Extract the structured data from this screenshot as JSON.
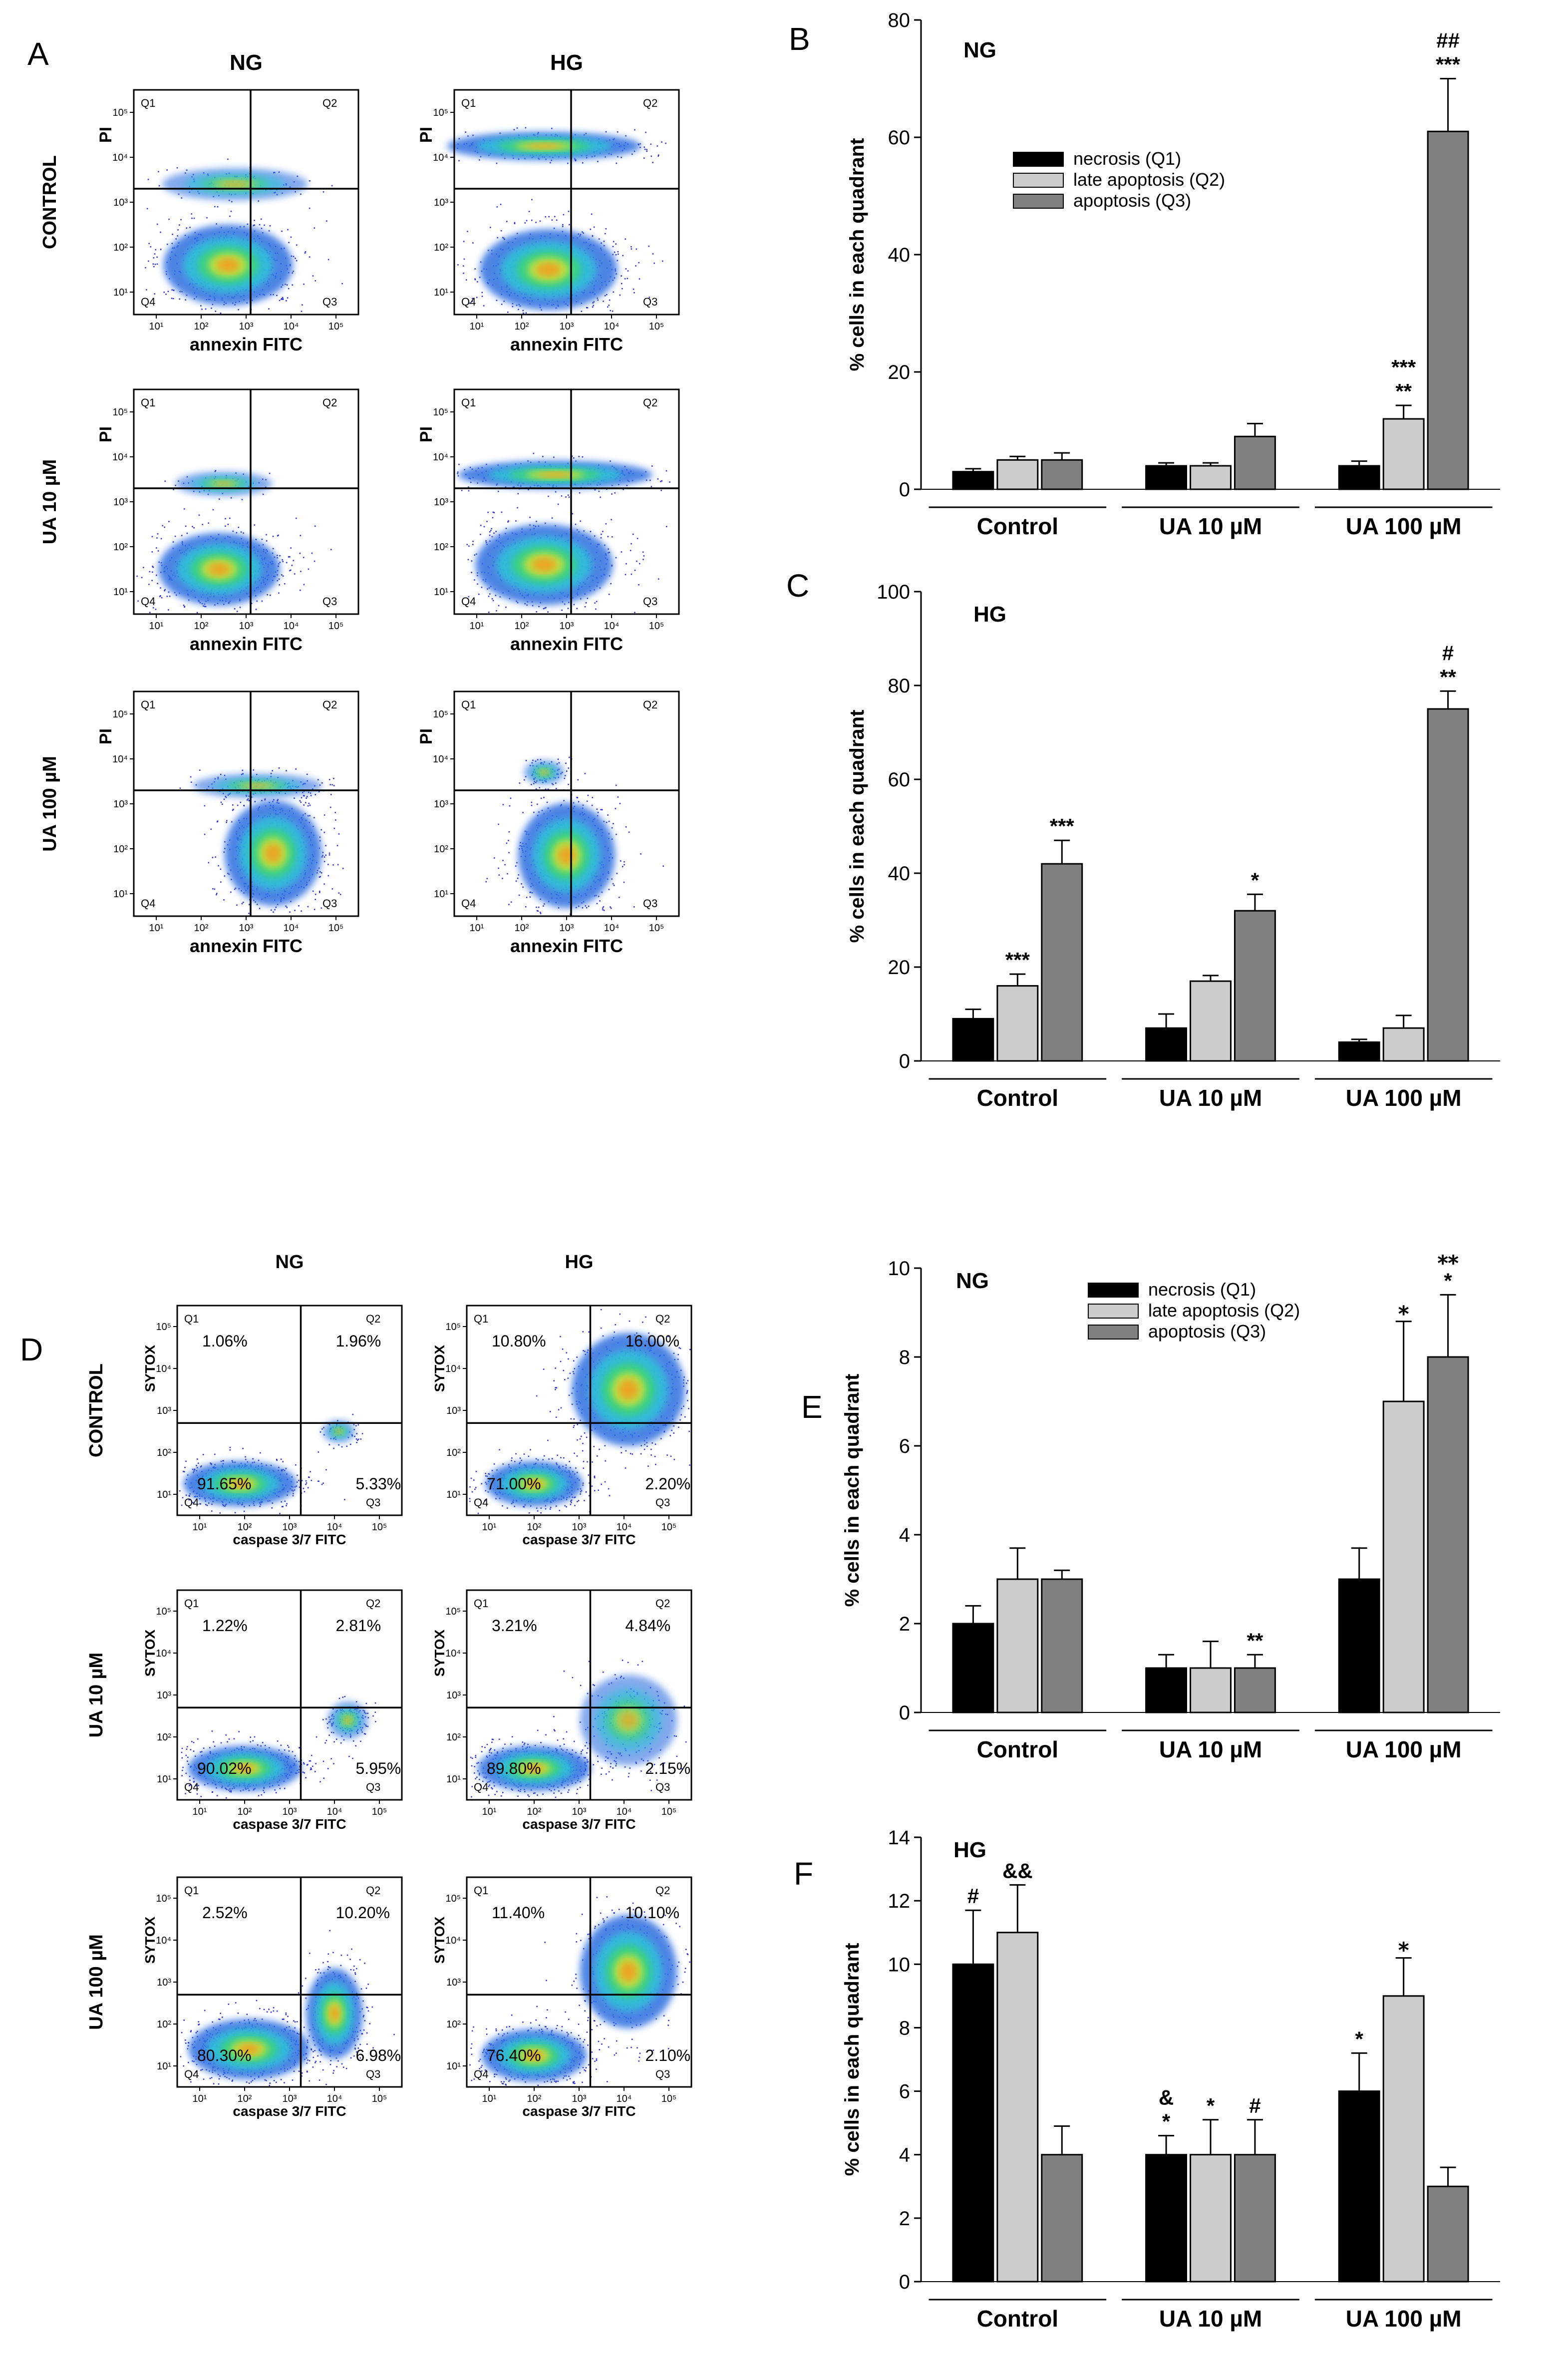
{
  "panels": {
    "A": {
      "letter": "A",
      "columns": [
        "NG",
        "HG"
      ],
      "rows": [
        "CONTROL",
        "UA 10 µM",
        "UA 100 µM"
      ],
      "quadrants": [
        "Q1",
        "Q2",
        "Q3",
        "Q4"
      ],
      "xlabel": "annexin FITC",
      "ylabel": "PI",
      "ticks": [
        "10¹",
        "10²",
        "10³",
        "10⁴",
        "10⁵"
      ]
    },
    "D": {
      "letter": "D",
      "columns": [
        "NG",
        "HG"
      ],
      "rows": [
        "CONTROL",
        "UA 10 µM",
        "UA 100 µM"
      ],
      "quadrants": [
        "Q1",
        "Q2",
        "Q3",
        "Q4"
      ],
      "xlabel": "caspase 3/7 FITC",
      "ylabel": "SYTOX",
      "ticks": [
        "10¹",
        "10²",
        "10³",
        "10⁴",
        "10⁵"
      ],
      "percentages": [
        [
          {
            "q1": "1.06%",
            "q2": "1.96%",
            "q4": "91.65%",
            "q3": "5.33%"
          },
          {
            "q1": "10.80%",
            "q2": "16.00%",
            "q4": "71.00%",
            "q3": "2.20%"
          }
        ],
        [
          {
            "q1": "1.22%",
            "q2": "2.81%",
            "q4": "90.02%",
            "q3": "5.95%"
          },
          {
            "q1": "3.21%",
            "q2": "4.84%",
            "q4": "89.80%",
            "q3": "2.15%"
          }
        ],
        [
          {
            "q1": "2.52%",
            "q2": "10.20%",
            "q4": "80.30%",
            "q3": "6.98%"
          },
          {
            "q1": "11.40%",
            "q2": "10.10%",
            "q4": "76.40%",
            "q3": "2.10%"
          }
        ]
      ]
    }
  },
  "colors": {
    "necrosis": "#000000",
    "late_apoptosis": "#cccccc",
    "apoptosis": "#808080",
    "density": [
      "#1f1fd8",
      "#2f6fe0",
      "#2ec4d8",
      "#3ad37a",
      "#c6e23c",
      "#f0a020",
      "#e02020"
    ]
  },
  "chart_data": [
    {
      "panel": "B",
      "type": "bar",
      "inner_title": "NG",
      "categories": [
        "Control",
        "UA 10 µM",
        "UA 100 µM"
      ],
      "series": [
        {
          "name": "necrosis (Q1)",
          "values": [
            3,
            4,
            4
          ],
          "errors": [
            0.5,
            0.5,
            0.8
          ],
          "annotations": [
            "",
            "",
            ""
          ]
        },
        {
          "name": "late apoptosis (Q2)",
          "values": [
            5,
            4,
            12
          ],
          "errors": [
            0.6,
            0.5,
            2.3
          ],
          "annotations": [
            "",
            "",
            "**\n***"
          ]
        },
        {
          "name": "apoptosis (Q3)",
          "values": [
            5,
            9,
            61
          ],
          "errors": [
            1.2,
            2.2,
            9
          ],
          "annotations": [
            "",
            "",
            "***\n##"
          ]
        }
      ],
      "ylabel": "% cells in each quadrant",
      "ylim": [
        0,
        80
      ],
      "yticks": [
        0,
        20,
        40,
        60,
        80
      ],
      "legend": "upper-center"
    },
    {
      "panel": "C",
      "type": "bar",
      "inner_title": "HG",
      "categories": [
        "Control",
        "UA 10 µM",
        "UA 100 µM"
      ],
      "series": [
        {
          "name": "necrosis (Q1)",
          "values": [
            9,
            7,
            4
          ],
          "errors": [
            2,
            3,
            0.6
          ],
          "annotations": [
            "",
            "",
            ""
          ]
        },
        {
          "name": "late apoptosis (Q2)",
          "values": [
            16,
            17,
            7
          ],
          "errors": [
            2.5,
            1.2,
            2.7
          ],
          "annotations": [
            "***",
            "",
            ""
          ]
        },
        {
          "name": "apoptosis (Q3)",
          "values": [
            42,
            32,
            75
          ],
          "errors": [
            5,
            3.5,
            3.8
          ],
          "annotations": [
            "***",
            "*",
            "**\n#"
          ]
        }
      ],
      "ylabel": "% cells in each quadrant",
      "ylim": [
        0,
        100
      ],
      "yticks": [
        0,
        20,
        40,
        60,
        80,
        100
      ],
      "legend": "none"
    },
    {
      "panel": "E",
      "type": "bar",
      "inner_title": "NG",
      "categories": [
        "Control",
        "UA 10 µM",
        "UA 100 µM"
      ],
      "series": [
        {
          "name": "necrosis (Q1)",
          "values": [
            2,
            1,
            3
          ],
          "errors": [
            0.4,
            0.3,
            0.7
          ],
          "annotations": [
            "",
            "",
            ""
          ]
        },
        {
          "name": "late apoptosis (Q2)",
          "values": [
            3,
            1,
            7
          ],
          "errors": [
            0.7,
            0.6,
            1.8
          ],
          "annotations": [
            "",
            "",
            "⁎"
          ]
        },
        {
          "name": "apoptosis (Q3)",
          "values": [
            3,
            1,
            8
          ],
          "errors": [
            0.2,
            0.3,
            1.4
          ],
          "annotations": [
            "",
            "**",
            "*\n⁎⁎"
          ]
        }
      ],
      "ylabel": "% cells in each quadrant",
      "ylim": [
        0,
        10
      ],
      "yticks": [
        0,
        2,
        4,
        6,
        8,
        10
      ],
      "legend": "upper-center"
    },
    {
      "panel": "F",
      "type": "bar",
      "inner_title": "HG",
      "categories": [
        "Control",
        "UA 10 µM",
        "UA 100 µM"
      ],
      "series": [
        {
          "name": "necrosis (Q1)",
          "values": [
            10,
            4,
            6
          ],
          "errors": [
            1.7,
            0.6,
            1.2
          ],
          "annotations": [
            "#",
            "*\n&",
            "*"
          ]
        },
        {
          "name": "late apoptosis (Q2)",
          "values": [
            11,
            4,
            9
          ],
          "errors": [
            1.5,
            1.1,
            1.2
          ],
          "annotations": [
            "&&",
            "*",
            "⁎"
          ]
        },
        {
          "name": "apoptosis (Q3)",
          "values": [
            4,
            4,
            3
          ],
          "errors": [
            0.9,
            1.1,
            0.6
          ],
          "annotations": [
            "",
            "#",
            ""
          ]
        }
      ],
      "ylabel": "% cells in each quadrant",
      "ylim": [
        0,
        14
      ],
      "yticks": [
        0,
        2,
        4,
        6,
        8,
        10,
        12,
        14
      ],
      "legend": "none"
    }
  ]
}
